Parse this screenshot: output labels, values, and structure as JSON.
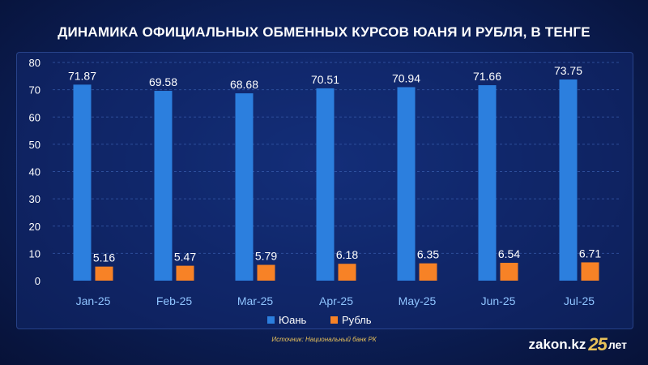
{
  "chart_data": {
    "type": "bar",
    "title": "ДИНАМИКА ОФИЦИАЛЬНЫХ ОБМЕННЫХ КУРСОВ ЮАНЯ И РУБЛЯ, В ТЕНГЕ",
    "categories": [
      "Jan-25",
      "Feb-25",
      "Mar-25",
      "Apr-25",
      "May-25",
      "Jun-25",
      "Jul-25"
    ],
    "series": [
      {
        "name": "Юань",
        "color": "#2c7fde",
        "values": [
          71.87,
          69.58,
          68.68,
          70.51,
          70.94,
          71.66,
          73.75
        ]
      },
      {
        "name": "Рубль",
        "color": "#f78226",
        "values": [
          5.16,
          5.47,
          5.79,
          6.18,
          6.35,
          6.54,
          6.71
        ]
      }
    ],
    "yticks": [
      0,
      10,
      20,
      30,
      40,
      50,
      60,
      70,
      80
    ],
    "ylim": [
      0,
      80
    ],
    "grid": true,
    "legend": "bottom-center",
    "xlabel": "",
    "ylabel": ""
  },
  "source": "Источник: Национальный банк РК",
  "brand": {
    "name": "zakon.kz",
    "number": "25",
    "suffix": "лет"
  },
  "colors": {
    "tick_label": "#8fc4ff",
    "grid": "#3a5fb0",
    "accent": "#e8c15a"
  }
}
